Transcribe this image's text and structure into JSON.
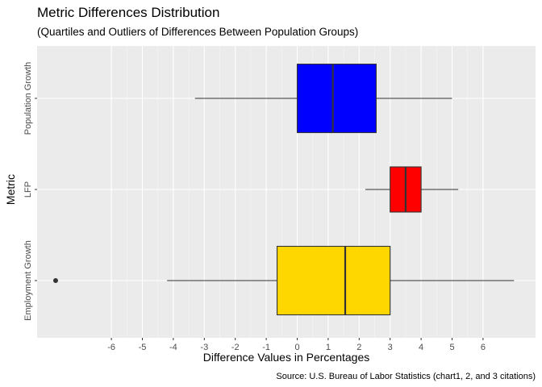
{
  "chart_data": {
    "type": "boxplot",
    "orientation": "horizontal",
    "title": "Metric Differences Distribution",
    "subtitle": "(Quartiles and Outliers of Differences Between Population Groups)",
    "xlabel": "Difference Values in Percentages",
    "ylabel": "Metric",
    "caption": "Source: U.S. Bureau of Labor Statistics (chart1, 2, and 3 citations)",
    "x_ticks": [
      -6,
      -5,
      -4,
      -3,
      -2,
      -1,
      0,
      1,
      2,
      3,
      4,
      5,
      6
    ],
    "xlim": [
      -8.4,
      7.8
    ],
    "grid": true,
    "legend": "none",
    "categories": [
      "Population Growth",
      "LFP",
      "Employment Growth"
    ],
    "series": [
      {
        "category": "Population Growth",
        "whisker_low": -3.3,
        "q1": 0.0,
        "median": 1.15,
        "q3": 2.55,
        "whisker_high": 5.0,
        "outliers": [],
        "color": "#0000FF"
      },
      {
        "category": "LFP",
        "whisker_low": 2.2,
        "q1": 3.0,
        "median": 3.5,
        "q3": 4.0,
        "whisker_high": 5.2,
        "outliers": [],
        "color": "#FF0000"
      },
      {
        "category": "Employment Growth",
        "whisker_low": -4.2,
        "q1": -0.65,
        "median": 1.55,
        "q3": 3.0,
        "whisker_high": 7.0,
        "outliers": [
          -7.8
        ],
        "color": "#FFD700"
      }
    ]
  }
}
